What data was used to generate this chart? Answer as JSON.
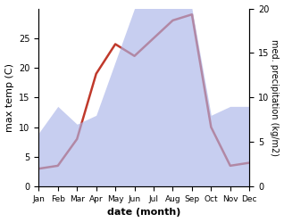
{
  "months": [
    "Jan",
    "Feb",
    "Mar",
    "Apr",
    "May",
    "Jun",
    "Jul",
    "Aug",
    "Sep",
    "Oct",
    "Nov",
    "Dec"
  ],
  "temperature": [
    3,
    3.5,
    8,
    19,
    24,
    22,
    25,
    28,
    29,
    10,
    3.5,
    4
  ],
  "precipitation": [
    6,
    9,
    7,
    8,
    14,
    20,
    21,
    21,
    20,
    8,
    9,
    9
  ],
  "temp_color": "#c0392b",
  "precip_color": "#aab4e8",
  "precip_alpha": 0.65,
  "xlabel": "date (month)",
  "ylabel_left": "max temp (C)",
  "ylabel_right": "med. precipitation (kg/m2)",
  "ylim_left": [
    0,
    30
  ],
  "ylim_right": [
    0,
    20
  ],
  "yticks_left": [
    0,
    5,
    10,
    15,
    20,
    25
  ],
  "yticks_right": [
    0,
    5,
    10,
    15,
    20
  ],
  "bg_color": "#ffffff"
}
